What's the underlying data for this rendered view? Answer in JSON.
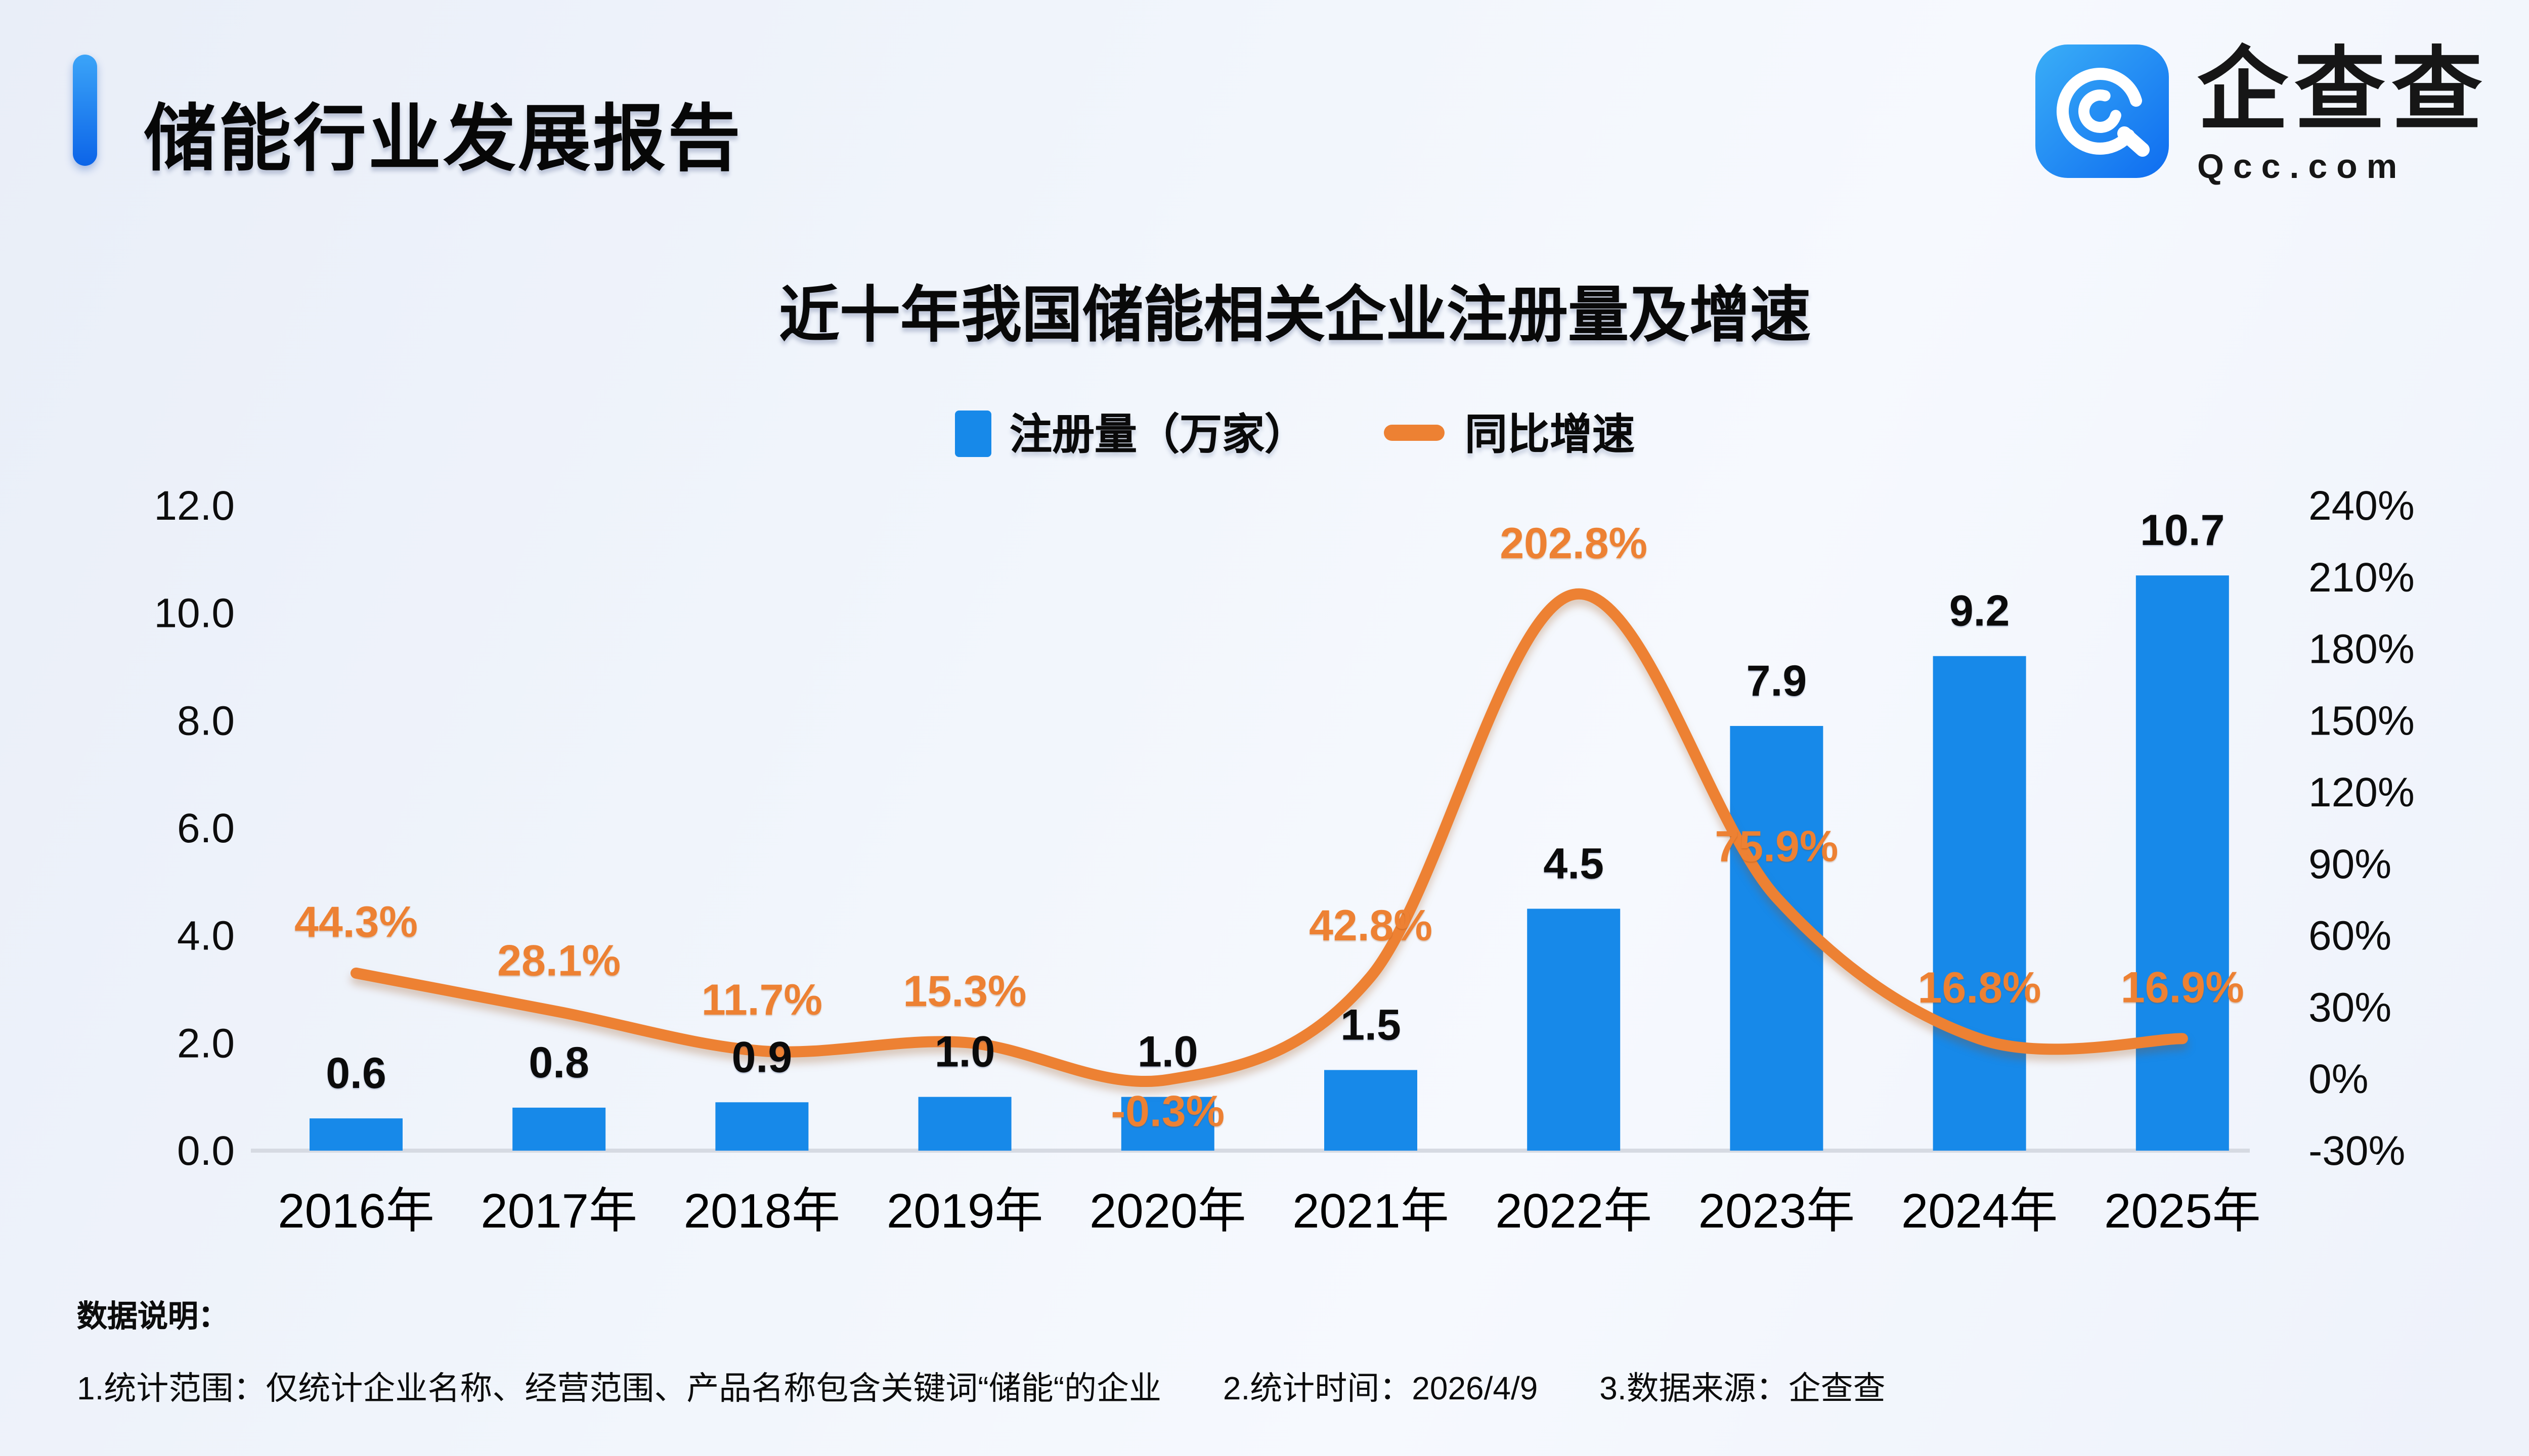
{
  "header": {
    "title": "储能行业发展报告"
  },
  "logo": {
    "name": "企查查",
    "domain": "Qcc.com"
  },
  "chart": {
    "title": "近十年我国储能相关企业注册量及增速",
    "legend": [
      {
        "label": "注册量（万家）",
        "marker": "square",
        "color": "#1789e9"
      },
      {
        "label": "同比增速",
        "marker": "dash",
        "color": "#ed8133"
      }
    ]
  },
  "chart_data": {
    "type": "bar+line dual-axis",
    "title": "近十年我国储能相关企业注册量及增速",
    "categories": [
      "2016年",
      "2017年",
      "2018年",
      "2019年",
      "2020年",
      "2021年",
      "2022年",
      "2023年",
      "2024年",
      "2025年"
    ],
    "series": [
      {
        "name": "注册量（万家）",
        "type": "bar",
        "axis": "left",
        "color": "#1789e9",
        "values": [
          0.6,
          0.8,
          0.9,
          1.0,
          1.0,
          1.5,
          4.5,
          7.9,
          9.2,
          10.7
        ],
        "labels": [
          "0.6",
          "0.8",
          "0.9",
          "1.0",
          "1.0",
          "1.5",
          "4.5",
          "7.9",
          "9.2",
          "10.7"
        ]
      },
      {
        "name": "同比增速",
        "type": "line",
        "axis": "right",
        "color": "#ed8133",
        "smooth": true,
        "values_percent": [
          44.3,
          28.1,
          11.7,
          15.3,
          -0.3,
          42.8,
          202.8,
          75.9,
          16.8,
          16.9
        ],
        "labels": [
          "44.3%",
          "28.1%",
          "11.7%",
          "15.3%",
          "-0.3%",
          "42.8%",
          "202.8%",
          "75.9%",
          "16.8%",
          "16.9%"
        ]
      }
    ],
    "left_axis": {
      "min": 0,
      "max": 12,
      "step": 2,
      "ticks": [
        "12.0",
        "10.0",
        "8.0",
        "6.0",
        "4.0",
        "2.0",
        "0.0"
      ]
    },
    "right_axis": {
      "min": -30,
      "max": 240,
      "step": 30,
      "ticks": [
        "240%",
        "210%",
        "180%",
        "150%",
        "120%",
        "90%",
        "60%",
        "30%",
        "0%",
        "-30%"
      ]
    },
    "grid": "baseline-only",
    "legend_position": "top-center"
  },
  "footnote": {
    "heading": "数据说明：",
    "items": [
      "1.统计范围：仅统计企业名称、经营范围、产品名称包含关键词“储能“的企业",
      "2.统计时间：2026/4/9",
      "3.数据来源：企查查"
    ]
  }
}
